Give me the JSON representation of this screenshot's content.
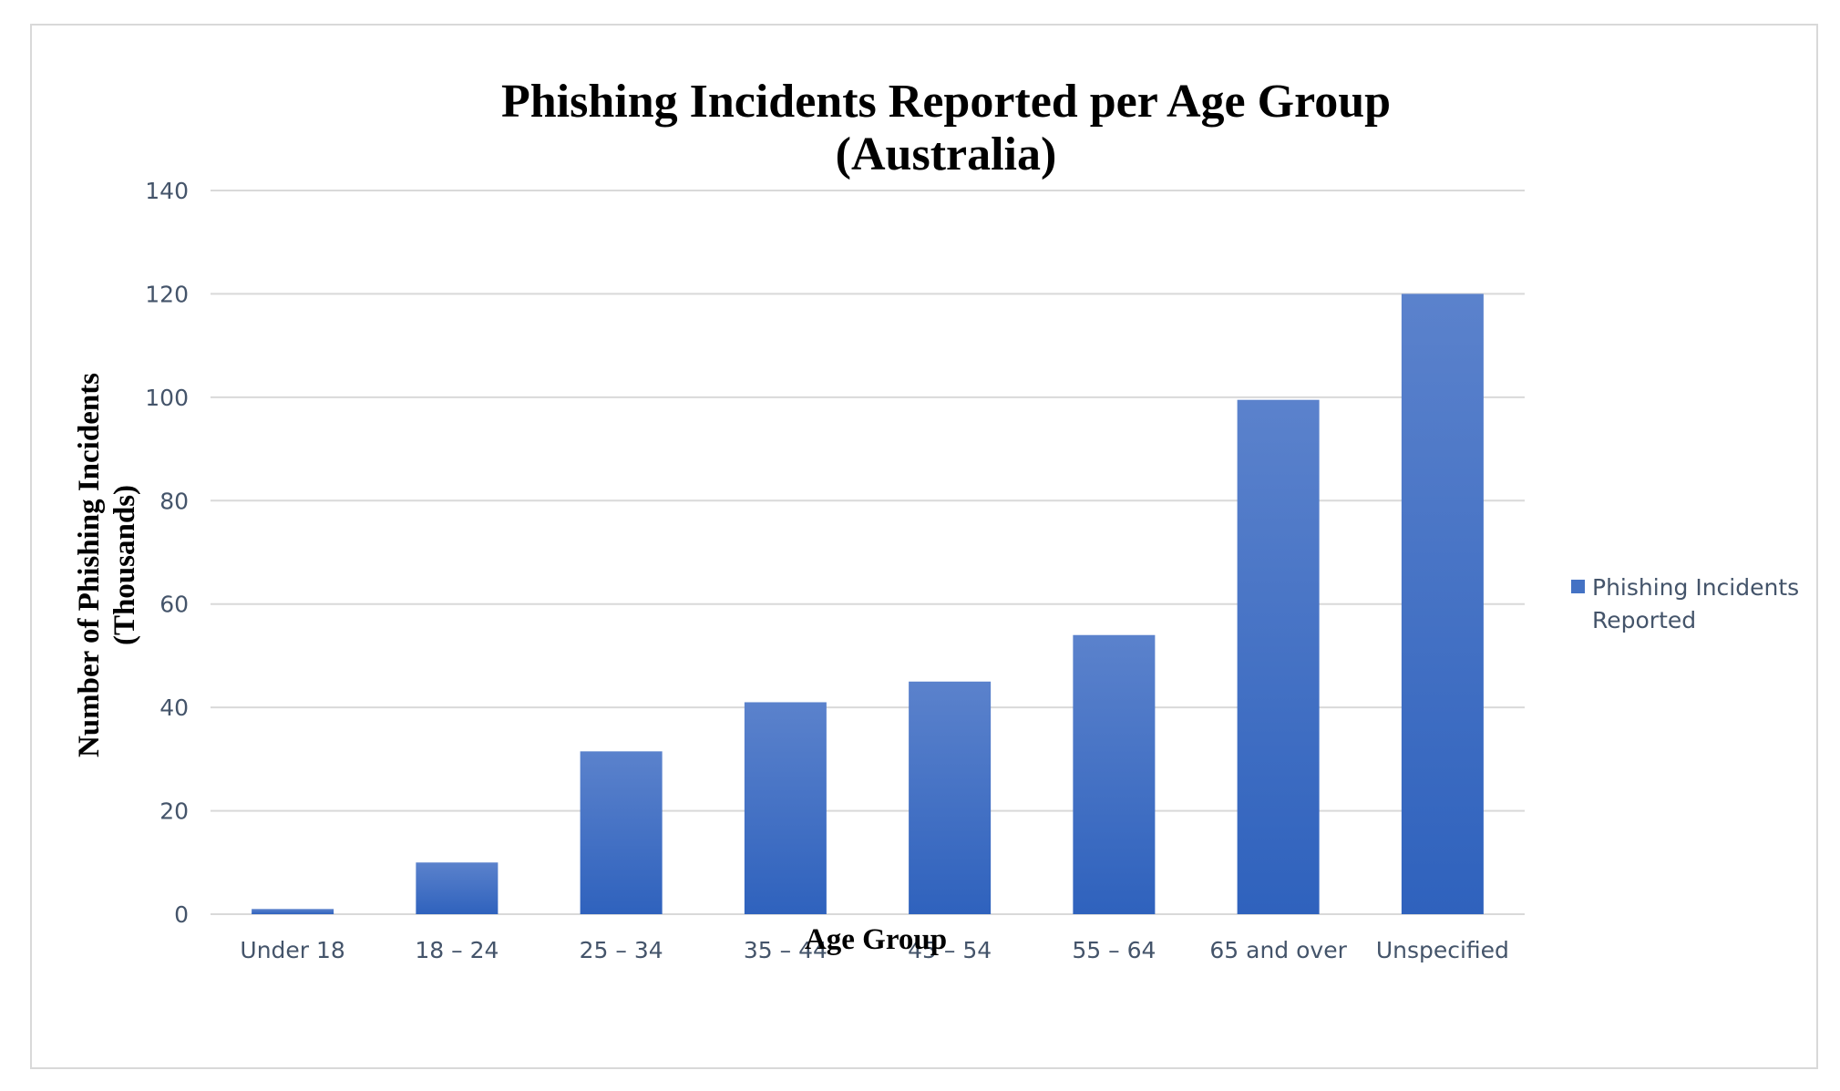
{
  "chart_data": {
    "type": "bar",
    "title": "Phishing Incidents Reported per Age Group",
    "subtitle": "(Australia)",
    "xlabel": "Age Group",
    "ylabel_line1": "Number of Phishing Incidents",
    "ylabel_line2": "(Thousands)",
    "categories": [
      "Under 18",
      "18 – 24",
      "25 – 34",
      "35 – 44",
      "45 – 54",
      "55 – 64",
      "65 and over",
      "Unspecified"
    ],
    "series": [
      {
        "name": "Phishing Incidents Reported",
        "legend_line1": "Phishing Incidents",
        "legend_line2": "Reported",
        "values": [
          1,
          10,
          31.5,
          41,
          45,
          54,
          99.5,
          120
        ]
      }
    ],
    "ylim": [
      0,
      140
    ],
    "yticks": [
      "0",
      "20",
      "40",
      "60",
      "80",
      "100",
      "120",
      "140"
    ],
    "grid": true,
    "legend_position": "right",
    "colors": {
      "bar_top": "#5b82cc",
      "bar_bottom": "#2f62bd",
      "grid": "#d9d9d9",
      "tick_text": "#44546a"
    }
  }
}
